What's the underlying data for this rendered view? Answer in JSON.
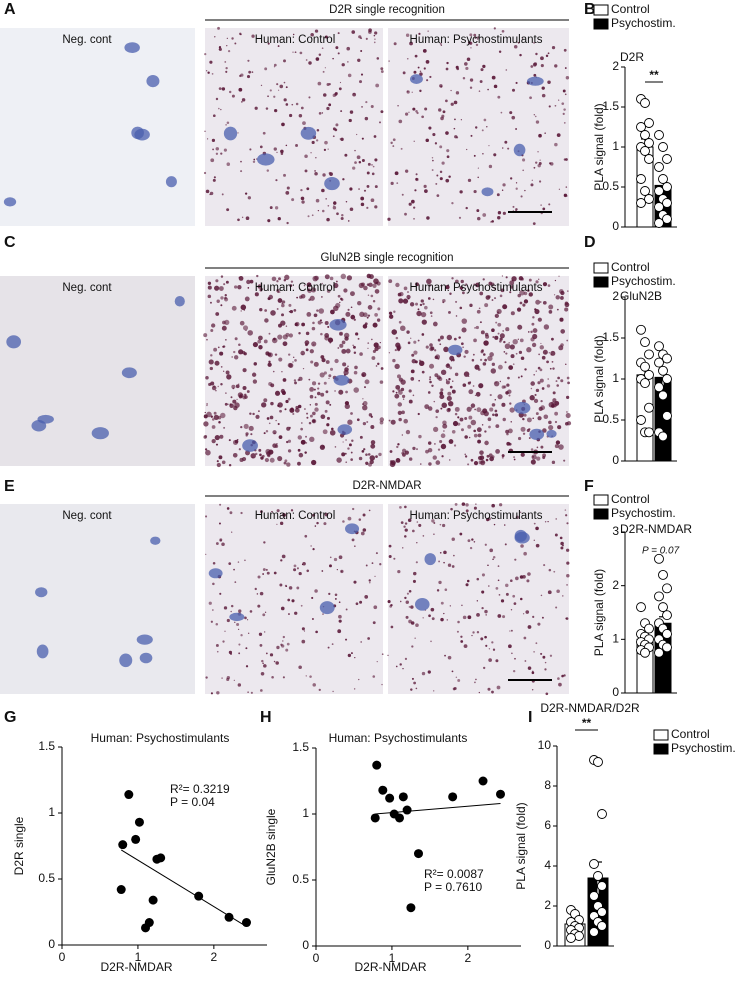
{
  "figure": {
    "panels": [
      "A",
      "B",
      "C",
      "D",
      "E",
      "F",
      "G",
      "H",
      "I"
    ],
    "rows": [
      {
        "header": "D2R single recognition",
        "labels": [
          "Neg. cont",
          "Human: Control",
          "Human: Psychostimulants"
        ]
      },
      {
        "header": "GluN2B single recognition",
        "labels": [
          "Neg. cont",
          "Human: Control",
          "Human: Psychostimulants"
        ]
      },
      {
        "header": "D2R-NMDAR",
        "labels": [
          "Neg. cont",
          "Human: Control",
          "Human: Psychostimulants"
        ]
      }
    ]
  },
  "chart_data": [
    {
      "type": "bar",
      "title": "D2R",
      "ylabel": "PLA signal (fold)",
      "annotation": "**",
      "ylim": [
        0,
        2
      ],
      "yticks": [
        0,
        0.5,
        1,
        1.5,
        2
      ],
      "series": [
        {
          "name": "Control",
          "color": "#ffffff",
          "value": 1.0,
          "error": 0.1,
          "points": [
            1.6,
            1.55,
            1.3,
            1.25,
            1.15,
            1.05,
            1.0,
            0.95,
            0.85,
            0.6,
            0.45,
            0.35,
            0.3
          ]
        },
        {
          "name": "Psychostim.",
          "color": "#000000",
          "value": 0.52,
          "error": 0.08,
          "points": [
            1.15,
            1.0,
            0.85,
            0.75,
            0.6,
            0.5,
            0.45,
            0.35,
            0.3,
            0.25,
            0.15,
            0.1,
            0.05
          ]
        }
      ]
    },
    {
      "type": "bar",
      "title": "GluN2B",
      "ylabel": "PLA signal (fold)",
      "ylim": [
        0,
        2
      ],
      "yticks": [
        0,
        0.5,
        1,
        1.5,
        2
      ],
      "series": [
        {
          "name": "Control",
          "color": "#ffffff",
          "value": 1.05,
          "error": 0.1,
          "points": [
            1.6,
            1.45,
            1.3,
            1.2,
            1.15,
            1.05,
            1.0,
            0.95,
            0.65,
            0.5,
            0.35,
            0.35
          ]
        },
        {
          "name": "Psychostim.",
          "color": "#000000",
          "value": 1.02,
          "error": 0.1,
          "points": [
            1.4,
            1.3,
            1.25,
            1.2,
            1.1,
            1.0,
            0.9,
            0.8,
            0.55,
            0.35,
            0.3
          ]
        }
      ]
    },
    {
      "type": "bar",
      "title": "D2R-NMDAR",
      "ylabel": "PLA signal (fold)",
      "annotation": "P = 0.07",
      "ylim": [
        0,
        3
      ],
      "yticks": [
        0,
        1,
        2,
        3
      ],
      "series": [
        {
          "name": "Control",
          "color": "#ffffff",
          "value": 1.0,
          "error": 0.07,
          "points": [
            1.6,
            1.3,
            1.2,
            1.1,
            1.05,
            1.0,
            0.95,
            0.9,
            0.85,
            0.8,
            0.75
          ]
        },
        {
          "name": "Psychostim.",
          "color": "#000000",
          "value": 1.3,
          "error": 0.12,
          "points": [
            2.5,
            2.2,
            1.95,
            1.8,
            1.6,
            1.45,
            1.3,
            1.2,
            1.1,
            1.0,
            0.9,
            0.85,
            0.75
          ]
        }
      ]
    },
    {
      "type": "scatter",
      "title": "Human: Psychostimulants",
      "xlabel": "D2R-NMDAR",
      "ylabel": "D2R single",
      "x": [
        0.78,
        0.8,
        0.88,
        0.97,
        1.02,
        1.1,
        1.15,
        1.2,
        1.25,
        1.3,
        1.8,
        2.2,
        2.43
      ],
      "y": [
        0.42,
        0.76,
        1.14,
        0.8,
        0.93,
        0.13,
        0.17,
        0.34,
        0.65,
        0.66,
        0.37,
        0.21,
        0.17
      ],
      "fit": {
        "x": [
          0.78,
          2.43
        ],
        "y": [
          0.72,
          0.14
        ]
      },
      "annotations": [
        "R²= 0.3219",
        "P = 0.04"
      ],
      "xlim": [
        0,
        2.7
      ],
      "ylim": [
        0,
        1.5
      ],
      "xticks": [
        0,
        1,
        2
      ],
      "yticks": [
        0,
        0.5,
        1,
        1.5
      ]
    },
    {
      "type": "scatter",
      "title": "Human: Psychostimulants",
      "xlabel": "D2R-NMDAR",
      "ylabel": "GluN2B single",
      "x": [
        0.78,
        0.8,
        0.88,
        0.97,
        1.03,
        1.1,
        1.15,
        1.2,
        1.25,
        1.35,
        1.8,
        2.2,
        2.43
      ],
      "y": [
        0.97,
        1.37,
        1.18,
        1.12,
        1.0,
        0.97,
        1.13,
        1.03,
        0.29,
        0.7,
        1.13,
        1.25,
        1.15
      ],
      "fit": {
        "x": [
          0.78,
          2.43
        ],
        "y": [
          1.0,
          1.08
        ]
      },
      "annotations": [
        "R²= 0.0087",
        "P = 0.7610"
      ],
      "xlim": [
        0,
        2.7
      ],
      "ylim": [
        0,
        1.5
      ],
      "xticks": [
        0,
        1,
        2
      ],
      "yticks": [
        0,
        0.5,
        1,
        1.5
      ]
    },
    {
      "type": "bar",
      "title": "D2R-NMDAR/D2R",
      "ylabel": "PLA signal (fold)",
      "annotation": "**",
      "ylim": [
        0,
        10
      ],
      "yticks": [
        0,
        2,
        4,
        6,
        8,
        10
      ],
      "series": [
        {
          "name": "Control",
          "color": "#ffffff",
          "value": 1.1,
          "error": 0.2,
          "points": [
            1.8,
            1.6,
            1.3,
            1.2,
            1.0,
            0.9,
            0.8,
            0.6,
            0.5,
            0.4
          ]
        },
        {
          "name": "Psychostim.",
          "color": "#000000",
          "value": 3.4,
          "error": 0.8,
          "points": [
            9.3,
            9.2,
            6.6,
            4.1,
            3.5,
            3.0,
            2.5,
            2.0,
            1.7,
            1.5,
            1.2,
            1.0,
            0.7
          ]
        }
      ]
    }
  ]
}
